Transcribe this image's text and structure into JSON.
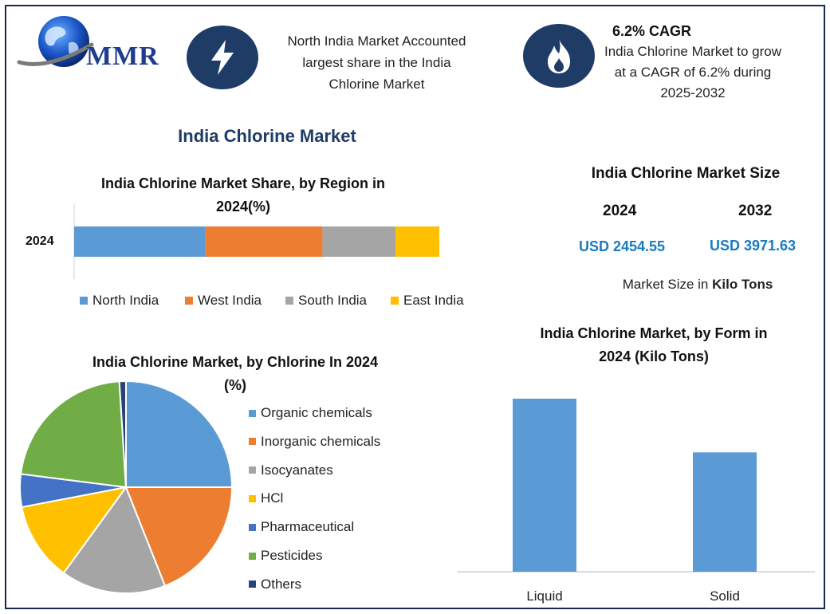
{
  "brand": {
    "logo_text": "MMR"
  },
  "header": {
    "info1": {
      "icon": "lightning-icon",
      "lines": [
        "North India Market Accounted",
        "largest share in the India",
        "Chlorine Market"
      ]
    },
    "info2": {
      "icon": "flame-icon",
      "headline": "6.2% CAGR",
      "lines": [
        "India Chlorine Market to grow",
        "at a CAGR of 6.2% during",
        "2025-2032"
      ]
    }
  },
  "main_title": "India Chlorine Market",
  "market_size": {
    "title": "India Chlorine Market Size",
    "year1": "2024",
    "year2": "2032",
    "value1": "USD 2454.55",
    "value2": "USD 3971.63",
    "note_prefix": "Market Size in ",
    "note_bold": "Kilo Tons"
  },
  "chart_data": [
    {
      "type": "bar",
      "orientation": "horizontal-stacked",
      "title_lines": [
        "India Chlorine Market Share, by Region in",
        "2024(%)"
      ],
      "categories": [
        "2024"
      ],
      "series": [
        {
          "name": "North India",
          "values": [
            36
          ],
          "color": "#5b9bd5"
        },
        {
          "name": "West India",
          "values": [
            32
          ],
          "color": "#ed7d31"
        },
        {
          "name": "South India",
          "values": [
            20
          ],
          "color": "#a5a5a5"
        },
        {
          "name": "East India",
          "values": [
            12
          ],
          "color": "#ffc000"
        }
      ],
      "legend": "bottom"
    },
    {
      "type": "pie",
      "title_lines": [
        "India Chlorine Market, by Chlorine In 2024",
        "(%)"
      ],
      "slices": [
        {
          "name": "Organic chemicals",
          "value": 25,
          "color": "#5b9bd5"
        },
        {
          "name": "Inorganic chemicals",
          "value": 19,
          "color": "#ed7d31"
        },
        {
          "name": "Isocyanates",
          "value": 16,
          "color": "#a5a5a5"
        },
        {
          "name": "HCl",
          "value": 12,
          "color": "#ffc000"
        },
        {
          "name": "Pharmaceutical",
          "value": 5,
          "color": "#4472c4"
        },
        {
          "name": "Pesticides",
          "value": 22,
          "color": "#70ad47"
        },
        {
          "name": "Others",
          "value": 1,
          "color": "#264478"
        }
      ],
      "legend": "right"
    },
    {
      "type": "bar",
      "title_lines": [
        "India Chlorine Market, by Form in",
        "2024 (Kilo Tons)"
      ],
      "categories": [
        "Liquid",
        "Solid"
      ],
      "values": [
        1450,
        1000
      ],
      "ylim": [
        0,
        1650
      ],
      "color": "#5b9bd5"
    }
  ]
}
